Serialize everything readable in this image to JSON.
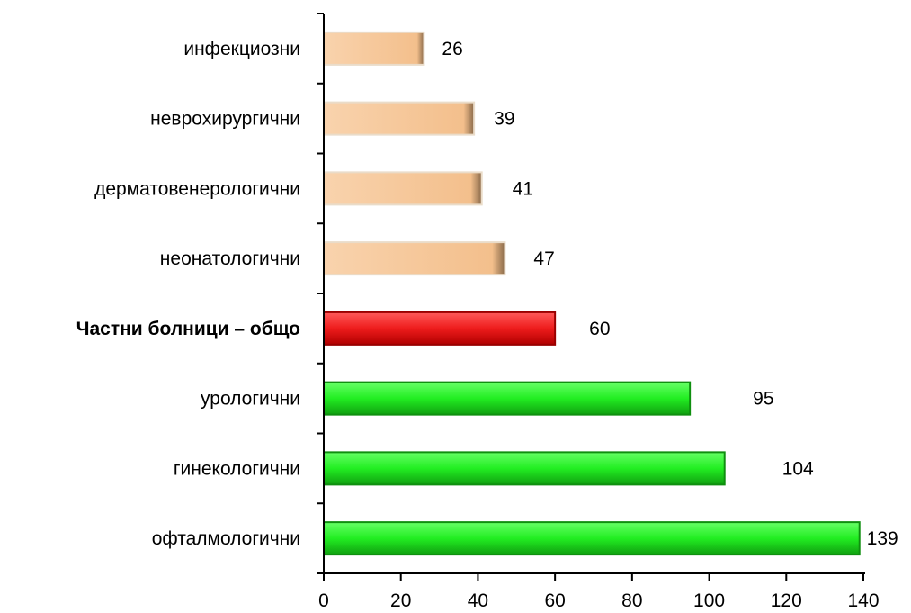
{
  "chart_data": {
    "type": "bar",
    "orientation": "horizontal",
    "categories": [
      "инфекциозни",
      "неврохирургични",
      "дерматовенерологични",
      "неонатологични",
      "Частни болници – общо",
      "урологични",
      "гинекологични",
      "офталмологични"
    ],
    "values": [
      26,
      39,
      41,
      47,
      60,
      95,
      104,
      139
    ],
    "bar_colors": [
      "#f6c79a",
      "#f6c79a",
      "#f6c79a",
      "#f6c79a",
      "#ee1c1c",
      "#22ee22",
      "#22ee22",
      "#22ee22"
    ],
    "highlight_category": "Частни болници – общо",
    "x_ticks": [
      0,
      20,
      40,
      60,
      80,
      100,
      120,
      140
    ],
    "xlim": [
      0,
      140
    ],
    "title": "",
    "xlabel": "",
    "ylabel": "",
    "grid": false,
    "legend": "none"
  }
}
